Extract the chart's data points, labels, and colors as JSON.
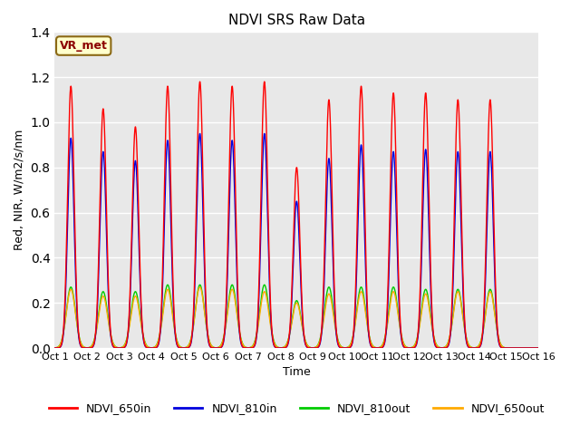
{
  "title": "NDVI SRS Raw Data",
  "xlabel": "Time",
  "ylabel": "Red, NIR, W/m2/s/nm",
  "ylim": [
    0,
    1.4
  ],
  "xlim": [
    0,
    15
  ],
  "xtick_labels": [
    "Oct 1",
    "Oct 2",
    "Oct 3",
    "Oct 4",
    "Oct 5",
    "Oct 6",
    "Oct 7",
    "Oct 8",
    "Oct 9",
    "Oct 10",
    "Oct 11",
    "Oct 12",
    "Oct 13",
    "Oct 14",
    "Oct 15",
    "Oct 16"
  ],
  "annotation_text": "VR_met",
  "colors": {
    "NDVI_650in": "#ff0000",
    "NDVI_810in": "#0000dd",
    "NDVI_810out": "#00cc00",
    "NDVI_650out": "#ffaa00"
  },
  "background_color": "#e8e8e8",
  "peak_centers": [
    0.5,
    1.5,
    2.5,
    3.5,
    4.5,
    5.5,
    6.5,
    7.5,
    8.5,
    9.5,
    10.5,
    11.5,
    12.5,
    13.5
  ],
  "peaks_650in": [
    1.16,
    1.06,
    0.98,
    1.16,
    1.18,
    1.16,
    1.18,
    0.8,
    1.1,
    1.16,
    1.13,
    1.13,
    1.1,
    1.1
  ],
  "peaks_810in": [
    0.93,
    0.87,
    0.83,
    0.92,
    0.95,
    0.92,
    0.95,
    0.65,
    0.84,
    0.9,
    0.87,
    0.88,
    0.87,
    0.87
  ],
  "peaks_810out": [
    0.27,
    0.25,
    0.25,
    0.28,
    0.28,
    0.28,
    0.28,
    0.21,
    0.27,
    0.27,
    0.27,
    0.26,
    0.26,
    0.26
  ],
  "peaks_650out": [
    0.26,
    0.23,
    0.23,
    0.26,
    0.27,
    0.26,
    0.25,
    0.2,
    0.24,
    0.25,
    0.25,
    0.24,
    0.25,
    0.25
  ],
  "sigma_in": 0.1,
  "sigma_out": 0.14
}
